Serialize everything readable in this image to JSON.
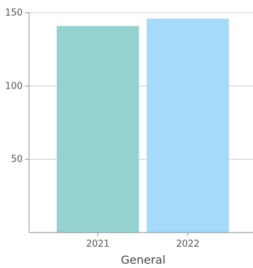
{
  "chart_data": {
    "type": "bar",
    "categories": [
      "2021",
      "2022"
    ],
    "values": [
      141,
      146
    ],
    "colors": [
      "#94d3d0",
      "#a6dafa"
    ],
    "xlabel": "General",
    "ylabel": "",
    "ylim": [
      0,
      150
    ],
    "yticks": [
      50,
      100,
      150
    ],
    "grid": true,
    "legend": "none"
  }
}
